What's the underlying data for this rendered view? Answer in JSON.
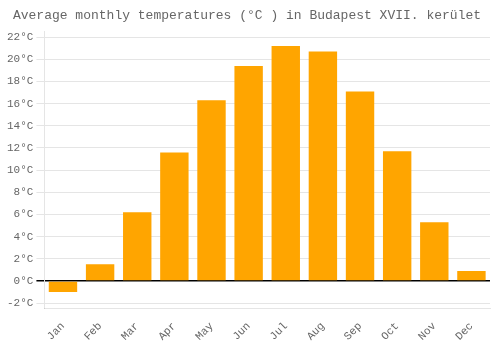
{
  "chart_data": {
    "type": "bar",
    "title": "Average monthly temperatures (°C ) in Budapest XVII. kerület",
    "categories": [
      "Jan",
      "Feb",
      "Mar",
      "Apr",
      "May",
      "Jun",
      "Jul",
      "Aug",
      "Sep",
      "Oct",
      "Nov",
      "Dec"
    ],
    "values": [
      -1.0,
      1.5,
      6.2,
      11.6,
      16.3,
      19.4,
      21.2,
      20.7,
      17.1,
      11.7,
      5.3,
      0.9
    ],
    "color": "#FFA500",
    "ylim": [
      -2.5,
      22.5
    ],
    "yticks": [
      {
        "value": -2,
        "label": "-2°C"
      },
      {
        "value": 0,
        "label": "0°C"
      },
      {
        "value": 2,
        "label": "2°C"
      },
      {
        "value": 4,
        "label": "4°C"
      },
      {
        "value": 6,
        "label": "6°C"
      },
      {
        "value": 8,
        "label": "8°C"
      },
      {
        "value": 10,
        "label": "10°C"
      },
      {
        "value": 12,
        "label": "12°C"
      },
      {
        "value": 14,
        "label": "14°C"
      },
      {
        "value": 16,
        "label": "16°C"
      },
      {
        "value": 18,
        "label": "18°C"
      },
      {
        "value": 20,
        "label": "20°C"
      },
      {
        "value": 22,
        "label": "22°C"
      }
    ],
    "grid": true
  }
}
